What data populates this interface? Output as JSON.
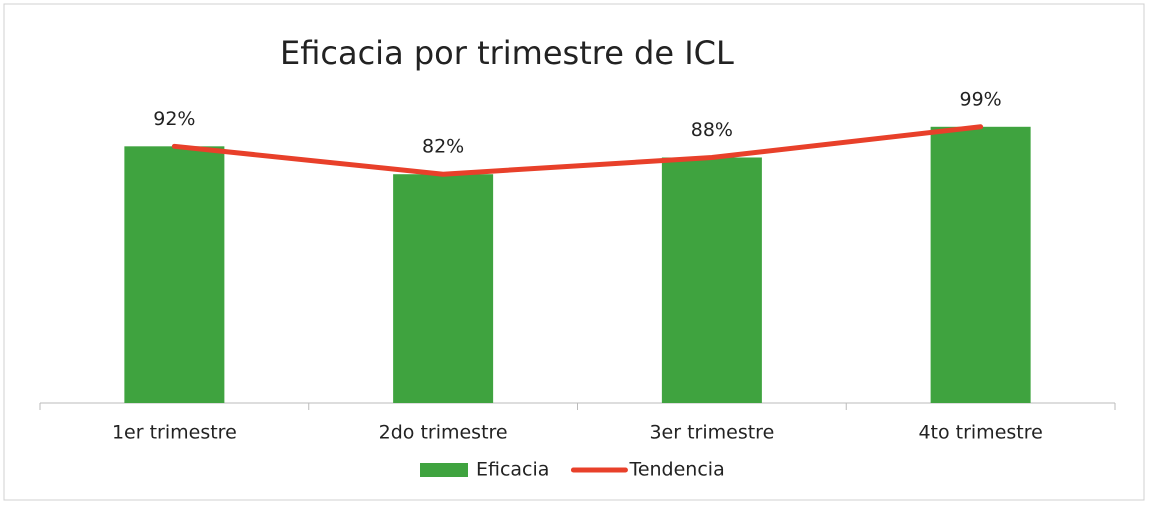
{
  "chart_data": {
    "type": "bar",
    "title": "Eficacia por trimestre de ICL",
    "categories": [
      "1er trimestre",
      "2do trimestre",
      "3er trimestre",
      "4to trimestre"
    ],
    "ylim": [
      0,
      100
    ],
    "series": [
      {
        "name": "Eficacia",
        "type": "bar",
        "color": "#3fa33f",
        "values": [
          92,
          82,
          88,
          99
        ],
        "value_labels": [
          "92%",
          "82%",
          "88%",
          "99%"
        ]
      },
      {
        "name": "Tendencia",
        "type": "line",
        "color": "#e8402a",
        "values": [
          92,
          82,
          88,
          99
        ]
      }
    ],
    "legend": "bottom"
  }
}
